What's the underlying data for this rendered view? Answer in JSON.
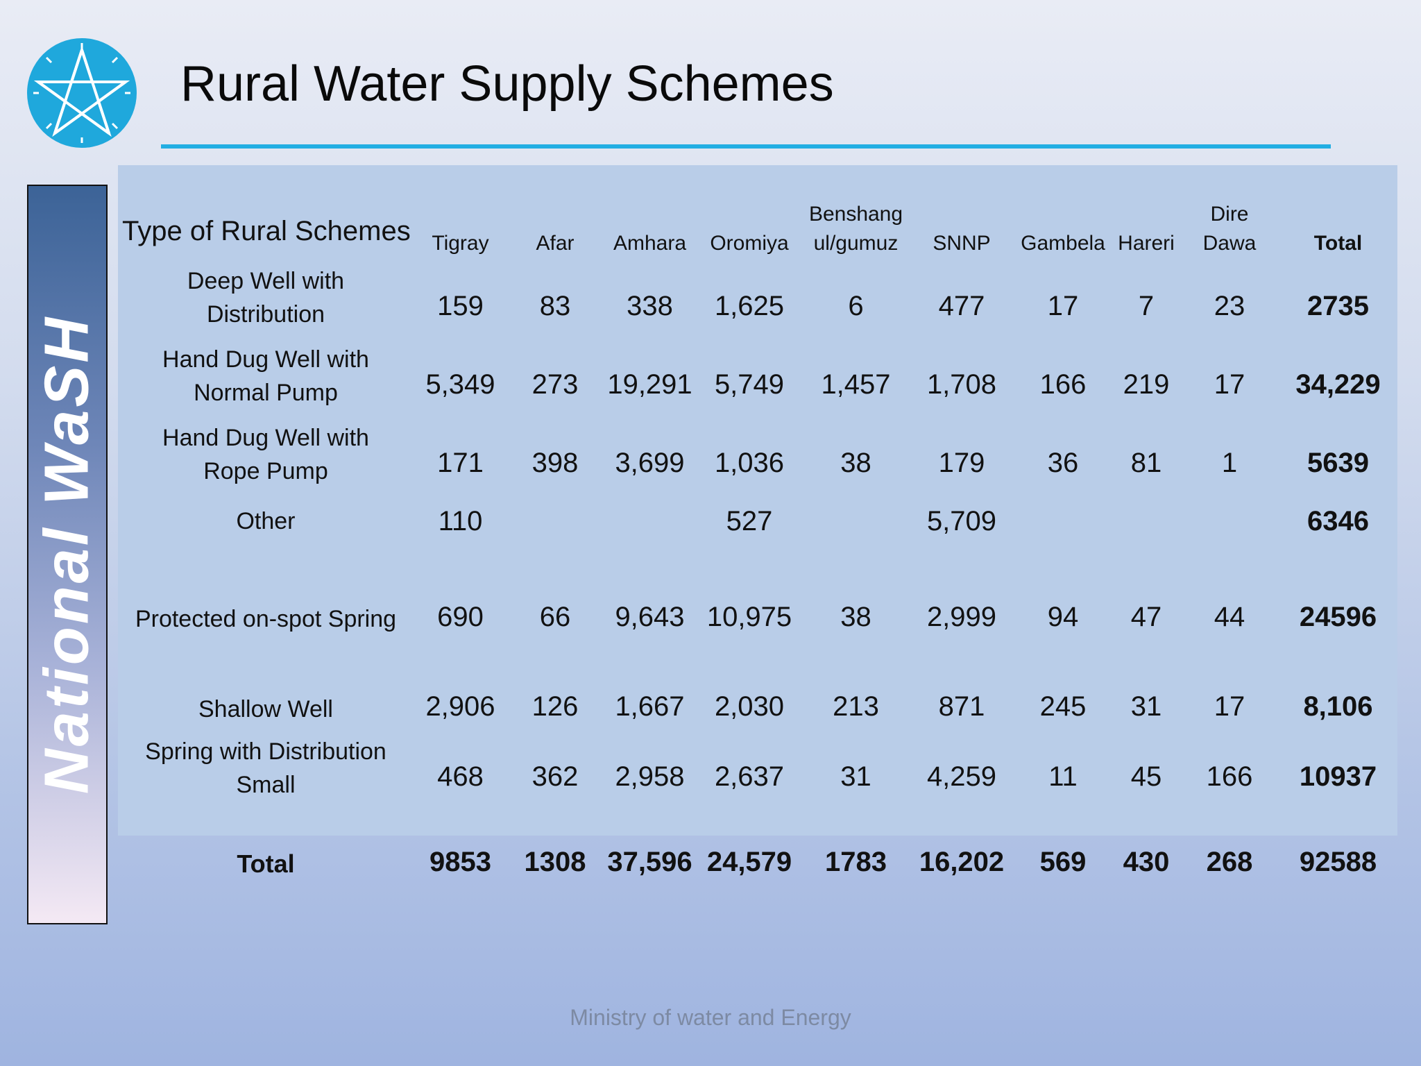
{
  "slide": {
    "title": "Rural Water Supply Schemes",
    "side_banner": "National WaSH",
    "footer": "Ministry of water and Energy",
    "accent_color": "#22aee3",
    "logo_icon": "star-emblem-icon"
  },
  "table": {
    "headers": {
      "type": "Type of Rural Schemes",
      "tigray": "Tigray",
      "afar": "Afar",
      "amhara": "Amhara",
      "oromiya": "Oromiya",
      "benshangul_line1": "Benshang",
      "benshangul_line2": "ul/gumuz",
      "snnp": "SNNP",
      "gambela": "Gambela",
      "hareri": "Hareri",
      "dire_line1": "Dire",
      "dire_line2": "Dawa",
      "total": "Total"
    },
    "rows": [
      {
        "label_line1": "Deep Well with",
        "label_line2": "Distribution",
        "tigray": "159",
        "afar": "83",
        "amhara": "338",
        "oromiya": "1,625",
        "benshangul": "6",
        "snnp": "477",
        "gambela": "17",
        "hareri": "7",
        "dire_dawa": "23",
        "total": "2735"
      },
      {
        "label_line1": "Hand Dug Well  with",
        "label_line2": "Normal Pump",
        "tigray": "5,349",
        "afar": "273",
        "amhara": "19,291",
        "oromiya": "5,749",
        "benshangul": "1,457",
        "snnp": "1,708",
        "gambela": "166",
        "hareri": "219",
        "dire_dawa": "17",
        "total": "34,229"
      },
      {
        "label_line1": "Hand Dug Well with",
        "label_line2": "Rope Pump",
        "tigray": "171",
        "afar": "398",
        "amhara": "3,699",
        "oromiya": "1,036",
        "benshangul": "38",
        "snnp": "179",
        "gambela": "36",
        "hareri": "81",
        "dire_dawa": "1",
        "total": "5639"
      },
      {
        "label_line1": "Other",
        "label_line2": "",
        "tigray": "110",
        "afar": "",
        "amhara": "",
        "oromiya": "527",
        "benshangul": "",
        "snnp": "5,709",
        "gambela": "",
        "hareri": "",
        "dire_dawa": "",
        "total": "6346"
      },
      {
        "label_line1": "Protected on-spot Spring",
        "label_line2": "",
        "tigray": "690",
        "afar": "66",
        "amhara": "9,643",
        "oromiya": "10,975",
        "benshangul": "38",
        "snnp": "2,999",
        "gambela": "94",
        "hareri": "47",
        "dire_dawa": "44",
        "total": "24596"
      },
      {
        "label_line1": "Shallow Well",
        "label_line2": "",
        "tigray": "2,906",
        "afar": "126",
        "amhara": "1,667",
        "oromiya": "2,030",
        "benshangul": "213",
        "snnp": "871",
        "gambela": "245",
        "hareri": "31",
        "dire_dawa": "17",
        "total": "8,106"
      },
      {
        "label_line1": "Spring with Distribution",
        "label_line2": "Small",
        "tigray": "468",
        "afar": "362",
        "amhara": "2,958",
        "oromiya": "2,637",
        "benshangul": "31",
        "snnp": "4,259",
        "gambela": "11",
        "hareri": "45",
        "dire_dawa": "166",
        "total": "10937"
      },
      {
        "label_line1": "Total",
        "label_line2": "",
        "tigray": "9853",
        "afar": "1308",
        "amhara": "37,596",
        "oromiya": "24,579",
        "benshangul": "1783",
        "snnp": "16,202",
        "gambela": "569",
        "hareri": "430",
        "dire_dawa": "268",
        "total": "92588"
      }
    ]
  }
}
